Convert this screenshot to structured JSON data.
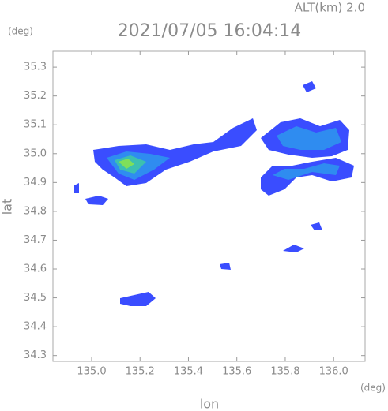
{
  "chart_data": {
    "type": "map",
    "title": "2021/07/05 16:04:14",
    "altitude_label": "ALT(km)  2.0",
    "x_label": "lon",
    "y_label": "lat",
    "x_unit": "(deg)",
    "y_unit": "(deg)",
    "xlim": [
      134.84,
      136.13
    ],
    "ylim": [
      34.28,
      35.355
    ],
    "xticks": [
      {
        "value": 135.0,
        "label": "135.0"
      },
      135.2,
      135.4,
      135.6,
      135.8,
      {
        "value": 136.0,
        "label": "136.0"
      }
    ],
    "yticks": [
      34.3,
      34.4,
      34.5,
      34.6,
      34.7,
      34.8,
      34.9,
      {
        "value": 35.0,
        "label": "35.0"
      },
      35.1,
      35.2,
      35.3
    ]
  }
}
